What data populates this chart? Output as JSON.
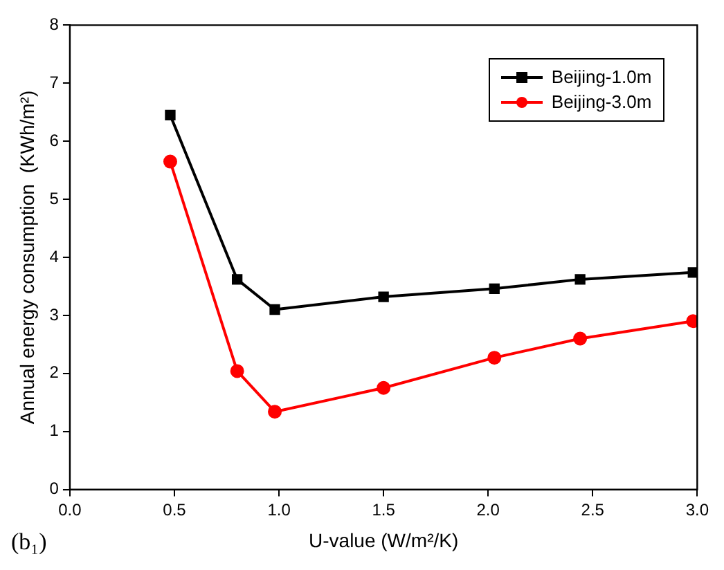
{
  "chart_data": {
    "type": "line",
    "xlabel": "U-value (W/m²/K)",
    "ylabel": "Annual energy consumption  (KWh/m²)",
    "x": [
      0.48,
      0.8,
      0.98,
      1.5,
      2.03,
      2.44,
      2.98
    ],
    "series": [
      {
        "name": "Beijing-1.0m",
        "color": "#000000",
        "marker": "square",
        "values": [
          6.45,
          3.62,
          3.1,
          3.32,
          3.46,
          3.62,
          3.74
        ]
      },
      {
        "name": "Beijing-3.0m",
        "color": "#ff0000",
        "marker": "circle",
        "values": [
          5.65,
          2.04,
          1.34,
          1.75,
          2.27,
          2.6,
          2.9
        ]
      }
    ],
    "xlim": [
      0,
      3
    ],
    "xticks": [
      {
        "value": 0,
        "label": "0.0"
      },
      0.5,
      {
        "value": 1,
        "label": "1.0"
      },
      1.5,
      {
        "value": 2,
        "label": "2.0"
      },
      2.5,
      {
        "value": 3,
        "label": "3.0"
      }
    ],
    "ylim": [
      0,
      8
    ],
    "yticks": [
      0,
      1,
      2,
      3,
      4,
      5,
      6,
      7,
      8
    ],
    "grid": false,
    "legend": "top right",
    "line_style": "solid",
    "annotations": [
      "(b₁)"
    ]
  }
}
